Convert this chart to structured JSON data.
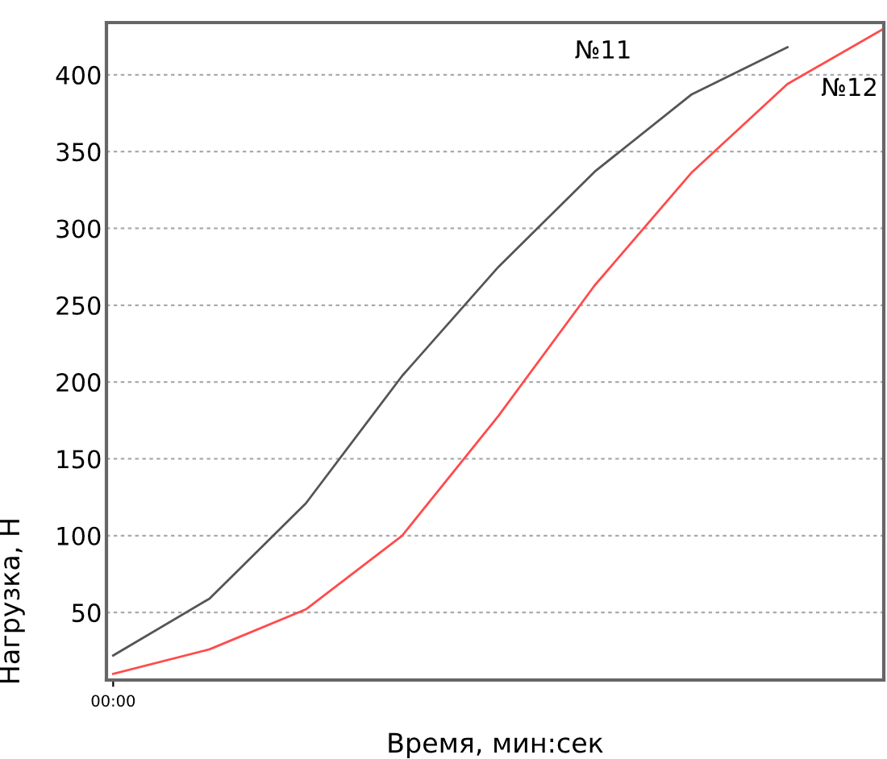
{
  "chart_data": {
    "type": "line",
    "xlabel": "Время, мин:сек",
    "ylabel": "Нагрузка, Н",
    "categories": [
      "00:00",
      null,
      null,
      null,
      null,
      null,
      null,
      null,
      null
    ],
    "series": [
      {
        "name": "№11",
        "color": "#555555",
        "values": [
          22,
          59,
          121,
          204,
          275,
          337,
          387,
          418,
          null
        ]
      },
      {
        "name": "№12",
        "color": "#ff4b4b",
        "values": [
          10,
          26,
          52,
          100,
          178,
          263,
          336,
          394,
          430
        ]
      }
    ],
    "ylim": [
      6,
      434
    ],
    "yticks": [
      50,
      100,
      150,
      200,
      250,
      300,
      350,
      400
    ],
    "grid": "y",
    "legend": false,
    "marker": "none",
    "line_style": "solid"
  }
}
